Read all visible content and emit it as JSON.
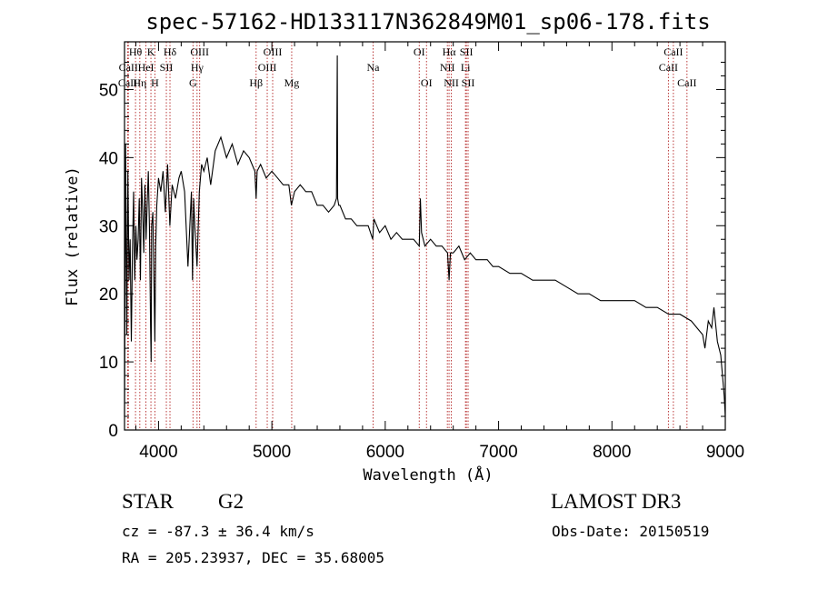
{
  "chart_data": {
    "type": "line",
    "title": "spec-57162-HD133117N362849M01_sp06-178.fits",
    "xlabel": "Wavelength (Å)",
    "ylabel": "Flux (relative)",
    "xlim": [
      3700,
      9000
    ],
    "ylim": [
      0,
      57
    ],
    "xticks": [
      4000,
      5000,
      6000,
      7000,
      8000,
      9000
    ],
    "yticks": [
      0,
      10,
      20,
      30,
      40,
      50
    ],
    "series": [
      {
        "name": "spectrum",
        "x": [
          3700,
          3710,
          3720,
          3730,
          3740,
          3750,
          3760,
          3770,
          3780,
          3790,
          3800,
          3810,
          3820,
          3830,
          3840,
          3850,
          3860,
          3870,
          3880,
          3890,
          3900,
          3910,
          3920,
          3930,
          3935,
          3940,
          3950,
          3960,
          3968,
          3975,
          3985,
          4000,
          4020,
          4040,
          4060,
          4080,
          4100,
          4120,
          4150,
          4180,
          4200,
          4230,
          4260,
          4290,
          4300,
          4310,
          4320,
          4340,
          4360,
          4380,
          4400,
          4430,
          4460,
          4500,
          4550,
          4600,
          4650,
          4700,
          4750,
          4800,
          4850,
          4861,
          4870,
          4900,
          4950,
          5000,
          5050,
          5100,
          5150,
          5172,
          5200,
          5250,
          5300,
          5350,
          5400,
          5450,
          5500,
          5550,
          5570,
          5577,
          5580,
          5590,
          5600,
          5650,
          5700,
          5750,
          5800,
          5850,
          5890,
          5900,
          5950,
          6000,
          6050,
          6100,
          6150,
          6200,
          6250,
          6300,
          6310,
          6320,
          6350,
          6400,
          6450,
          6500,
          6550,
          6563,
          6575,
          6600,
          6650,
          6700,
          6750,
          6800,
          6850,
          6900,
          6950,
          7000,
          7100,
          7200,
          7300,
          7400,
          7500,
          7600,
          7700,
          7800,
          7900,
          8000,
          8100,
          8200,
          8300,
          8400,
          8500,
          8600,
          8700,
          8750,
          8800,
          8820,
          8850,
          8880,
          8900,
          8930,
          8960,
          8990,
          9000
        ],
        "values": [
          2,
          42,
          14,
          38,
          22,
          28,
          13,
          26,
          35,
          22,
          30,
          25,
          28,
          34,
          22,
          37,
          32,
          26,
          36,
          28,
          33,
          38,
          30,
          15,
          10,
          30,
          32,
          22,
          13,
          27,
          33,
          37,
          35,
          38,
          32,
          39,
          30,
          36,
          34,
          37,
          38,
          35,
          24,
          35,
          22,
          34,
          30,
          24,
          35,
          39,
          38,
          40,
          36,
          41,
          43,
          40,
          42,
          39,
          41,
          40,
          38,
          34,
          38,
          39,
          37,
          38,
          37,
          36,
          36,
          33,
          35,
          36,
          35,
          35,
          33,
          33,
          32,
          33,
          34,
          55,
          34,
          33,
          33,
          31,
          31,
          30,
          30,
          30,
          28,
          31,
          29,
          30,
          28,
          29,
          28,
          28,
          28,
          27,
          34,
          29,
          27,
          28,
          27,
          27,
          26,
          22,
          26,
          26,
          27,
          25,
          26,
          25,
          25,
          25,
          24,
          24,
          23,
          23,
          22,
          22,
          22,
          21,
          20,
          20,
          19,
          19,
          19,
          19,
          18,
          18,
          17,
          17,
          16,
          15,
          14,
          12,
          16,
          15,
          18,
          13,
          11,
          5,
          2
        ]
      }
    ],
    "lines": [
      {
        "label": "Hθ",
        "x": 3797,
        "row": 1
      },
      {
        "label": "CaII",
        "x": 3734,
        "row": 2
      },
      {
        "label": "CaII",
        "x": 3728,
        "row": 3
      },
      {
        "label": "HeI",
        "x": 3889,
        "row": 2
      },
      {
        "label": "Hη",
        "x": 3835,
        "row": 3
      },
      {
        "label": "K",
        "x": 3933,
        "row": 1
      },
      {
        "label": "SII",
        "x": 4069,
        "row": 2
      },
      {
        "label": "H",
        "x": 3968,
        "row": 3
      },
      {
        "label": "Hδ",
        "x": 4101,
        "row": 1
      },
      {
        "label": "OIII",
        "x": 4363,
        "row": 1
      },
      {
        "label": "Hγ",
        "x": 4340,
        "row": 2
      },
      {
        "label": "G",
        "x": 4304,
        "row": 3
      },
      {
        "label": "OIII",
        "x": 5007,
        "row": 1
      },
      {
        "label": "OIII",
        "x": 4959,
        "row": 2
      },
      {
        "label": "Hβ",
        "x": 4861,
        "row": 3
      },
      {
        "label": "Mg",
        "x": 5175,
        "row": 3
      },
      {
        "label": "Na",
        "x": 5893,
        "row": 2
      },
      {
        "label": "OI",
        "x": 6300,
        "row": 1
      },
      {
        "label": "OI",
        "x": 6364,
        "row": 3
      },
      {
        "label": "Hα",
        "x": 6563,
        "row": 1
      },
      {
        "label": "SII",
        "x": 6716,
        "row": 1
      },
      {
        "label": "NII",
        "x": 6548,
        "row": 2
      },
      {
        "label": "Li",
        "x": 6708,
        "row": 2
      },
      {
        "label": "NII",
        "x": 6583,
        "row": 3
      },
      {
        "label": "SII",
        "x": 6731,
        "row": 3
      },
      {
        "label": "CaII",
        "x": 8542,
        "row": 1
      },
      {
        "label": "CaII",
        "x": 8498,
        "row": 2
      },
      {
        "label": "CaII",
        "x": 8662,
        "row": 3
      }
    ],
    "colors": {
      "spectrum": "#000000",
      "lines": "#b22222",
      "axes": "#000000"
    }
  },
  "info": {
    "class": "STAR",
    "subclass": "G2",
    "survey": "LAMOST DR3",
    "cz": "cz = -87.3 ± 36.4 km/s",
    "obs_date": "Obs-Date: 20150519",
    "coords": "RA = 205.23937, DEC =  35.68005"
  }
}
